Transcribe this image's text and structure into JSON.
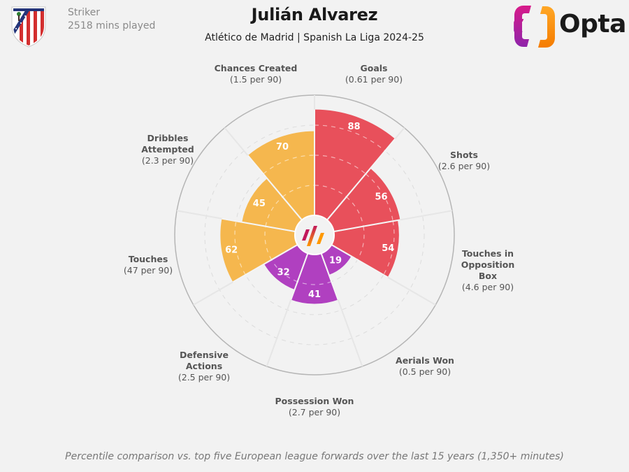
{
  "header": {
    "position": "Striker",
    "minutes": "2518 mins played",
    "player_name": "Julián Alvarez",
    "subtitle": "Atlético de Madrid | Spanish La Liga 2024-25",
    "brand": "Opta",
    "club_crest_icon": "atletico-madrid-crest-icon"
  },
  "footer": {
    "note": "Percentile comparison vs. top five European league forwards over the last 15 years (1,350+ minutes)"
  },
  "colors": {
    "attacking": "#e8505b",
    "defending": "#b040c0",
    "possession": "#f5b74e",
    "background": "#f2f2f2",
    "grid": "#d8d8d8"
  },
  "chart_data": {
    "type": "pie",
    "subtype": "polar-bar (pizza chart)",
    "title": "Julián Alvarez",
    "subtitle": "Atlético de Madrid | Spanish La Liga 2024-25",
    "range": [
      0,
      100
    ],
    "gridlines": [
      25,
      50,
      75
    ],
    "categories": [
      "Goals",
      "Shots",
      "Touches in Opposition Box",
      "Aerials Won",
      "Possession Won",
      "Defensive Actions",
      "Touches",
      "Dribbles Attempted",
      "Chances Created"
    ],
    "values": [
      88,
      56,
      54,
      19,
      41,
      32,
      62,
      45,
      70
    ],
    "per90": [
      "0.61 per 90",
      "2.6 per 90",
      "4.6 per 90",
      "0.5 per 90",
      "2.7 per 90",
      "2.5 per 90",
      "47 per 90",
      "2.3 per 90",
      "1.5 per 90"
    ],
    "groups": [
      "attacking",
      "attacking",
      "attacking",
      "defending",
      "defending",
      "defending",
      "possession",
      "possession",
      "possession"
    ],
    "series": [
      {
        "name": "Percentile",
        "values": [
          88,
          56,
          54,
          19,
          41,
          32,
          62,
          45,
          70
        ]
      }
    ]
  },
  "labels": [
    {
      "name": "Goals",
      "sub": "(0.61 per 90)"
    },
    {
      "name": "Shots",
      "sub": "(2.6 per 90)"
    },
    {
      "name": "Touches in Opposition Box",
      "sub": "(4.6 per 90)"
    },
    {
      "name": "Aerials Won",
      "sub": "(0.5 per 90)"
    },
    {
      "name": "Possession Won",
      "sub": "(2.7 per 90)"
    },
    {
      "name": "Defensive Actions",
      "sub": "(2.5 per 90)"
    },
    {
      "name": "Touches",
      "sub": "(47 per 90)"
    },
    {
      "name": "Dribbles Attempted",
      "sub": "(2.3 per 90)"
    },
    {
      "name": "Chances Created",
      "sub": "(1.5 per 90)"
    }
  ]
}
